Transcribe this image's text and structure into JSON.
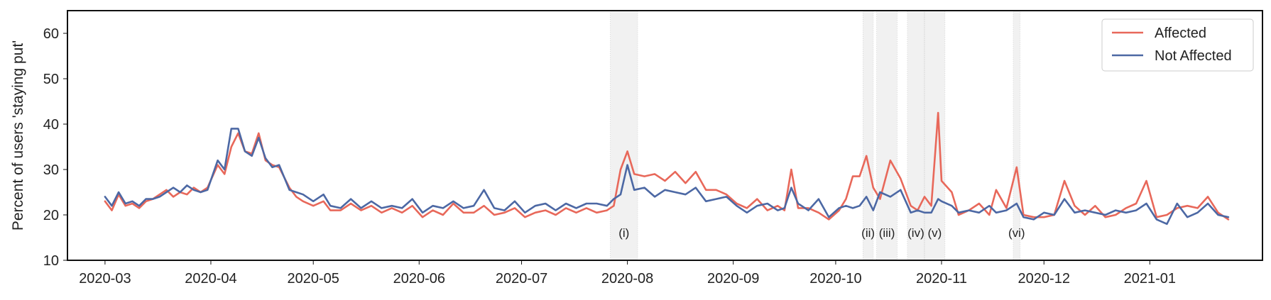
{
  "chart_data": {
    "type": "line",
    "title": "",
    "xlabel": "",
    "ylabel": "Percent of users 'staying put'",
    "ylim": [
      10,
      65
    ],
    "xlim": [
      "2020-02-19",
      "2021-02-03"
    ],
    "yticks": [
      "10",
      "20",
      "30",
      "40",
      "50",
      "60"
    ],
    "xticks": [
      {
        "date": "2020-03-01",
        "label": "2020-03"
      },
      {
        "date": "2020-04-01",
        "label": "2020-04"
      },
      {
        "date": "2020-05-01",
        "label": "2020-05"
      },
      {
        "date": "2020-06-01",
        "label": "2020-06"
      },
      {
        "date": "2020-07-01",
        "label": "2020-07"
      },
      {
        "date": "2020-08-01",
        "label": "2020-08"
      },
      {
        "date": "2020-09-01",
        "label": "2020-09"
      },
      {
        "date": "2020-10-01",
        "label": "2020-10"
      },
      {
        "date": "2020-11-01",
        "label": "2020-11"
      },
      {
        "date": "2020-12-01",
        "label": "2020-12"
      },
      {
        "date": "2021-01-01",
        "label": "2021-01"
      }
    ],
    "grid": false,
    "legend": "top-right",
    "series": [
      {
        "name": "Affected",
        "color": "#e8685a",
        "points": [
          [
            "2020-03-01",
            23.0
          ],
          [
            "2020-03-03",
            21.0
          ],
          [
            "2020-03-05",
            24.5
          ],
          [
            "2020-03-07",
            22.0
          ],
          [
            "2020-03-09",
            22.5
          ],
          [
            "2020-03-11",
            21.5
          ],
          [
            "2020-03-13",
            23.0
          ],
          [
            "2020-03-15",
            23.5
          ],
          [
            "2020-03-17",
            24.5
          ],
          [
            "2020-03-19",
            25.5
          ],
          [
            "2020-03-21",
            24.0
          ],
          [
            "2020-03-23",
            25.0
          ],
          [
            "2020-03-25",
            24.5
          ],
          [
            "2020-03-27",
            26.0
          ],
          [
            "2020-03-29",
            25.0
          ],
          [
            "2020-03-31",
            26.0
          ],
          [
            "2020-04-03",
            31.0
          ],
          [
            "2020-04-05",
            29.0
          ],
          [
            "2020-04-07",
            35.0
          ],
          [
            "2020-04-09",
            38.0
          ],
          [
            "2020-04-11",
            34.0
          ],
          [
            "2020-04-13",
            33.5
          ],
          [
            "2020-04-15",
            38.0
          ],
          [
            "2020-04-17",
            32.0
          ],
          [
            "2020-04-19",
            31.0
          ],
          [
            "2020-04-21",
            30.5
          ],
          [
            "2020-04-24",
            26.0
          ],
          [
            "2020-04-26",
            24.0
          ],
          [
            "2020-04-28",
            23.0
          ],
          [
            "2020-05-01",
            22.0
          ],
          [
            "2020-05-04",
            23.0
          ],
          [
            "2020-05-06",
            21.0
          ],
          [
            "2020-05-09",
            21.0
          ],
          [
            "2020-05-12",
            22.5
          ],
          [
            "2020-05-15",
            21.0
          ],
          [
            "2020-05-18",
            22.0
          ],
          [
            "2020-05-21",
            20.5
          ],
          [
            "2020-05-24",
            21.5
          ],
          [
            "2020-05-27",
            20.5
          ],
          [
            "2020-05-30",
            22.0
          ],
          [
            "2020-06-02",
            19.5
          ],
          [
            "2020-06-05",
            21.0
          ],
          [
            "2020-06-08",
            20.0
          ],
          [
            "2020-06-11",
            22.5
          ],
          [
            "2020-06-14",
            20.5
          ],
          [
            "2020-06-17",
            20.5
          ],
          [
            "2020-06-20",
            22.0
          ],
          [
            "2020-06-23",
            20.0
          ],
          [
            "2020-06-26",
            20.5
          ],
          [
            "2020-06-29",
            21.5
          ],
          [
            "2020-07-02",
            19.5
          ],
          [
            "2020-07-05",
            20.5
          ],
          [
            "2020-07-08",
            21.0
          ],
          [
            "2020-07-11",
            20.0
          ],
          [
            "2020-07-14",
            21.5
          ],
          [
            "2020-07-17",
            20.5
          ],
          [
            "2020-07-20",
            21.5
          ],
          [
            "2020-07-23",
            20.5
          ],
          [
            "2020-07-26",
            21.0
          ],
          [
            "2020-07-28",
            22.0
          ],
          [
            "2020-07-30",
            30.0
          ],
          [
            "2020-08-01",
            34.0
          ],
          [
            "2020-08-03",
            29.0
          ],
          [
            "2020-08-06",
            28.5
          ],
          [
            "2020-08-09",
            29.0
          ],
          [
            "2020-08-12",
            27.5
          ],
          [
            "2020-08-15",
            29.5
          ],
          [
            "2020-08-18",
            27.0
          ],
          [
            "2020-08-21",
            29.5
          ],
          [
            "2020-08-24",
            25.5
          ],
          [
            "2020-08-27",
            25.5
          ],
          [
            "2020-08-30",
            24.5
          ],
          [
            "2020-09-02",
            22.5
          ],
          [
            "2020-09-05",
            21.5
          ],
          [
            "2020-09-08",
            23.5
          ],
          [
            "2020-09-11",
            21.0
          ],
          [
            "2020-09-14",
            22.0
          ],
          [
            "2020-09-16",
            21.0
          ],
          [
            "2020-09-18",
            30.0
          ],
          [
            "2020-09-20",
            21.5
          ],
          [
            "2020-09-23",
            21.5
          ],
          [
            "2020-09-26",
            20.5
          ],
          [
            "2020-09-29",
            19.0
          ],
          [
            "2020-10-02",
            21.0
          ],
          [
            "2020-10-04",
            23.5
          ],
          [
            "2020-10-06",
            28.5
          ],
          [
            "2020-10-08",
            28.5
          ],
          [
            "2020-10-10",
            33.0
          ],
          [
            "2020-10-12",
            26.0
          ],
          [
            "2020-10-14",
            23.5
          ],
          [
            "2020-10-17",
            32.0
          ],
          [
            "2020-10-20",
            28.0
          ],
          [
            "2020-10-23",
            22.0
          ],
          [
            "2020-10-25",
            21.0
          ],
          [
            "2020-10-27",
            24.0
          ],
          [
            "2020-10-29",
            22.0
          ],
          [
            "2020-10-31",
            42.5
          ],
          [
            "2020-11-01",
            27.5
          ],
          [
            "2020-11-04",
            25.0
          ],
          [
            "2020-11-06",
            20.0
          ],
          [
            "2020-11-09",
            21.0
          ],
          [
            "2020-11-12",
            22.5
          ],
          [
            "2020-11-15",
            20.0
          ],
          [
            "2020-11-17",
            25.5
          ],
          [
            "2020-11-20",
            21.5
          ],
          [
            "2020-11-23",
            30.5
          ],
          [
            "2020-11-25",
            20.0
          ],
          [
            "2020-11-28",
            19.5
          ],
          [
            "2020-12-01",
            19.5
          ],
          [
            "2020-12-04",
            20.0
          ],
          [
            "2020-12-07",
            27.5
          ],
          [
            "2020-12-10",
            22.0
          ],
          [
            "2020-12-13",
            20.0
          ],
          [
            "2020-12-16",
            22.0
          ],
          [
            "2020-12-19",
            19.5
          ],
          [
            "2020-12-22",
            20.0
          ],
          [
            "2020-12-25",
            21.5
          ],
          [
            "2020-12-28",
            22.5
          ],
          [
            "2020-12-31",
            27.5
          ],
          [
            "2021-01-03",
            19.5
          ],
          [
            "2021-01-06",
            20.0
          ],
          [
            "2021-01-09",
            21.5
          ],
          [
            "2021-01-12",
            22.0
          ],
          [
            "2021-01-15",
            21.5
          ],
          [
            "2021-01-18",
            24.0
          ],
          [
            "2021-01-21",
            20.5
          ],
          [
            "2021-01-24",
            19.0
          ]
        ]
      },
      {
        "name": "Not Affected",
        "color": "#4c68a4",
        "points": [
          [
            "2020-03-01",
            24.0
          ],
          [
            "2020-03-03",
            22.0
          ],
          [
            "2020-03-05",
            25.0
          ],
          [
            "2020-03-07",
            22.5
          ],
          [
            "2020-03-09",
            23.0
          ],
          [
            "2020-03-11",
            22.0
          ],
          [
            "2020-03-13",
            23.5
          ],
          [
            "2020-03-15",
            23.5
          ],
          [
            "2020-03-17",
            24.0
          ],
          [
            "2020-03-19",
            25.0
          ],
          [
            "2020-03-21",
            26.0
          ],
          [
            "2020-03-23",
            25.0
          ],
          [
            "2020-03-25",
            26.5
          ],
          [
            "2020-03-27",
            25.5
          ],
          [
            "2020-03-29",
            25.0
          ],
          [
            "2020-03-31",
            25.5
          ],
          [
            "2020-04-03",
            32.0
          ],
          [
            "2020-04-05",
            30.0
          ],
          [
            "2020-04-07",
            39.0
          ],
          [
            "2020-04-09",
            39.0
          ],
          [
            "2020-04-11",
            34.0
          ],
          [
            "2020-04-13",
            33.0
          ],
          [
            "2020-04-15",
            37.0
          ],
          [
            "2020-04-17",
            32.5
          ],
          [
            "2020-04-19",
            30.5
          ],
          [
            "2020-04-21",
            31.0
          ],
          [
            "2020-04-24",
            25.5
          ],
          [
            "2020-04-26",
            25.0
          ],
          [
            "2020-04-28",
            24.5
          ],
          [
            "2020-05-01",
            23.0
          ],
          [
            "2020-05-04",
            24.5
          ],
          [
            "2020-05-06",
            22.0
          ],
          [
            "2020-05-09",
            21.5
          ],
          [
            "2020-05-12",
            23.5
          ],
          [
            "2020-05-15",
            21.5
          ],
          [
            "2020-05-18",
            23.0
          ],
          [
            "2020-05-21",
            21.5
          ],
          [
            "2020-05-24",
            22.0
          ],
          [
            "2020-05-27",
            21.5
          ],
          [
            "2020-05-30",
            23.5
          ],
          [
            "2020-06-02",
            20.5
          ],
          [
            "2020-06-05",
            22.0
          ],
          [
            "2020-06-08",
            21.5
          ],
          [
            "2020-06-11",
            23.0
          ],
          [
            "2020-06-14",
            21.5
          ],
          [
            "2020-06-17",
            22.0
          ],
          [
            "2020-06-20",
            25.5
          ],
          [
            "2020-06-23",
            21.5
          ],
          [
            "2020-06-26",
            21.0
          ],
          [
            "2020-06-29",
            23.0
          ],
          [
            "2020-07-02",
            20.5
          ],
          [
            "2020-07-05",
            22.0
          ],
          [
            "2020-07-08",
            22.5
          ],
          [
            "2020-07-11",
            21.0
          ],
          [
            "2020-07-14",
            22.5
          ],
          [
            "2020-07-17",
            21.5
          ],
          [
            "2020-07-20",
            22.5
          ],
          [
            "2020-07-23",
            22.5
          ],
          [
            "2020-07-26",
            22.0
          ],
          [
            "2020-07-28",
            23.5
          ],
          [
            "2020-07-30",
            24.5
          ],
          [
            "2020-08-01",
            31.0
          ],
          [
            "2020-08-03",
            25.5
          ],
          [
            "2020-08-06",
            26.0
          ],
          [
            "2020-08-09",
            24.0
          ],
          [
            "2020-08-12",
            25.5
          ],
          [
            "2020-08-15",
            25.0
          ],
          [
            "2020-08-18",
            24.5
          ],
          [
            "2020-08-21",
            26.0
          ],
          [
            "2020-08-24",
            23.0
          ],
          [
            "2020-08-27",
            23.5
          ],
          [
            "2020-08-30",
            24.0
          ],
          [
            "2020-09-02",
            22.0
          ],
          [
            "2020-09-05",
            20.5
          ],
          [
            "2020-09-08",
            22.0
          ],
          [
            "2020-09-11",
            22.5
          ],
          [
            "2020-09-14",
            21.0
          ],
          [
            "2020-09-16",
            21.5
          ],
          [
            "2020-09-18",
            26.0
          ],
          [
            "2020-09-20",
            22.5
          ],
          [
            "2020-09-23",
            21.0
          ],
          [
            "2020-09-26",
            23.5
          ],
          [
            "2020-09-29",
            19.5
          ],
          [
            "2020-10-02",
            21.5
          ],
          [
            "2020-10-04",
            22.0
          ],
          [
            "2020-10-06",
            21.5
          ],
          [
            "2020-10-08",
            22.0
          ],
          [
            "2020-10-10",
            24.0
          ],
          [
            "2020-10-12",
            21.0
          ],
          [
            "2020-10-14",
            25.0
          ],
          [
            "2020-10-17",
            24.0
          ],
          [
            "2020-10-20",
            25.5
          ],
          [
            "2020-10-23",
            20.5
          ],
          [
            "2020-10-25",
            21.0
          ],
          [
            "2020-10-27",
            20.5
          ],
          [
            "2020-10-29",
            20.5
          ],
          [
            "2020-10-31",
            23.5
          ],
          [
            "2020-11-01",
            23.0
          ],
          [
            "2020-11-04",
            22.0
          ],
          [
            "2020-11-06",
            20.5
          ],
          [
            "2020-11-09",
            21.0
          ],
          [
            "2020-11-12",
            20.5
          ],
          [
            "2020-11-15",
            22.0
          ],
          [
            "2020-11-17",
            20.5
          ],
          [
            "2020-11-20",
            21.0
          ],
          [
            "2020-11-23",
            22.5
          ],
          [
            "2020-11-25",
            19.5
          ],
          [
            "2020-11-28",
            19.0
          ],
          [
            "2020-12-01",
            20.5
          ],
          [
            "2020-12-04",
            20.0
          ],
          [
            "2020-12-07",
            23.5
          ],
          [
            "2020-12-10",
            20.5
          ],
          [
            "2020-12-13",
            21.0
          ],
          [
            "2020-12-16",
            20.5
          ],
          [
            "2020-12-19",
            20.0
          ],
          [
            "2020-12-22",
            21.0
          ],
          [
            "2020-12-25",
            20.5
          ],
          [
            "2020-12-28",
            21.0
          ],
          [
            "2020-12-31",
            22.5
          ],
          [
            "2021-01-03",
            19.0
          ],
          [
            "2021-01-06",
            18.0
          ],
          [
            "2021-01-09",
            22.5
          ],
          [
            "2021-01-12",
            19.5
          ],
          [
            "2021-01-15",
            20.5
          ],
          [
            "2021-01-18",
            22.5
          ],
          [
            "2021-01-21",
            20.0
          ],
          [
            "2021-01-24",
            19.5
          ]
        ]
      }
    ],
    "highlights": [
      {
        "label": "(i)",
        "start": "2020-07-27",
        "end": "2020-08-03"
      },
      {
        "label": "(ii)",
        "start": "2020-10-09",
        "end": "2020-10-11"
      },
      {
        "label": "(iii)",
        "start": "2020-10-13",
        "end": "2020-10-18"
      },
      {
        "label": "(iv)",
        "start": "2020-10-22",
        "end": "2020-10-26"
      },
      {
        "label": "(v)",
        "start": "2020-10-27",
        "end": "2020-11-01"
      },
      {
        "label": "(vi)",
        "start": "2020-11-22",
        "end": "2020-11-23"
      }
    ]
  }
}
